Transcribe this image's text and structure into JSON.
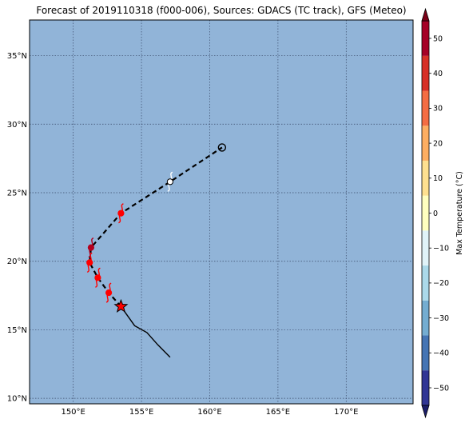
{
  "title": "Forecast of 2019110318 (f000-006), Sources: GDACS (TC track), GFS (Meteo)",
  "map": {
    "ocean_color": "#91b4d8",
    "lon_ticks": [
      150,
      155,
      160,
      165,
      170
    ],
    "lon_labels": [
      "150°E",
      "155°E",
      "160°E",
      "165°E",
      "170°E"
    ],
    "lat_ticks": [
      10,
      15,
      20,
      25,
      30,
      35
    ],
    "lat_labels": [
      "10°N",
      "15°N",
      "20°N",
      "25°N",
      "30°N",
      "35°N"
    ],
    "lon_range": [
      146.8,
      174.9
    ],
    "lat_range": [
      9.6,
      37.6
    ]
  },
  "track": {
    "past": [
      [
        153.5,
        16.7
      ],
      [
        154.5,
        15.3
      ],
      [
        155.4,
        14.8
      ],
      [
        156.2,
        13.9
      ],
      [
        157.1,
        13.0
      ]
    ],
    "forecast": [
      [
        153.5,
        16.7
      ],
      [
        152.6,
        17.7
      ],
      [
        151.8,
        18.8
      ],
      [
        151.2,
        19.9
      ],
      [
        151.3,
        21.0
      ],
      [
        153.5,
        23.5
      ],
      [
        157.1,
        25.8
      ],
      [
        160.9,
        28.3
      ]
    ],
    "current_position": [
      153.5,
      16.7
    ],
    "storm_symbols": [
      {
        "lon": 152.6,
        "lat": 17.7,
        "color": "#ff0000"
      },
      {
        "lon": 151.8,
        "lat": 18.8,
        "color": "#ff0000"
      },
      {
        "lon": 151.2,
        "lat": 19.9,
        "color": "#ff0000"
      },
      {
        "lon": 151.3,
        "lat": 21.0,
        "color": "#b4001e"
      },
      {
        "lon": 153.5,
        "lat": 23.5,
        "color": "#ff0000"
      },
      {
        "lon": 157.1,
        "lat": 25.8,
        "color": "#ffffff"
      }
    ],
    "open_circle": [
      160.9,
      28.3
    ]
  },
  "colorbar": {
    "label": "Max Temperature (°C)",
    "ticks": [
      -50,
      -40,
      -30,
      -20,
      -10,
      0,
      10,
      20,
      30,
      40,
      50
    ],
    "tick_labels": [
      "−50",
      "−40",
      "−30",
      "−20",
      "−10",
      "0",
      "10",
      "20",
      "30",
      "40",
      "50"
    ],
    "colors": [
      "#313695",
      "#4575b4",
      "#74add1",
      "#abd9e9",
      "#e0f3f8",
      "#ffffbf",
      "#fee090",
      "#fdae61",
      "#f46d43",
      "#d73027",
      "#a50026"
    ],
    "under_color": "#1b1e6a",
    "over_color": "#7a0017"
  }
}
